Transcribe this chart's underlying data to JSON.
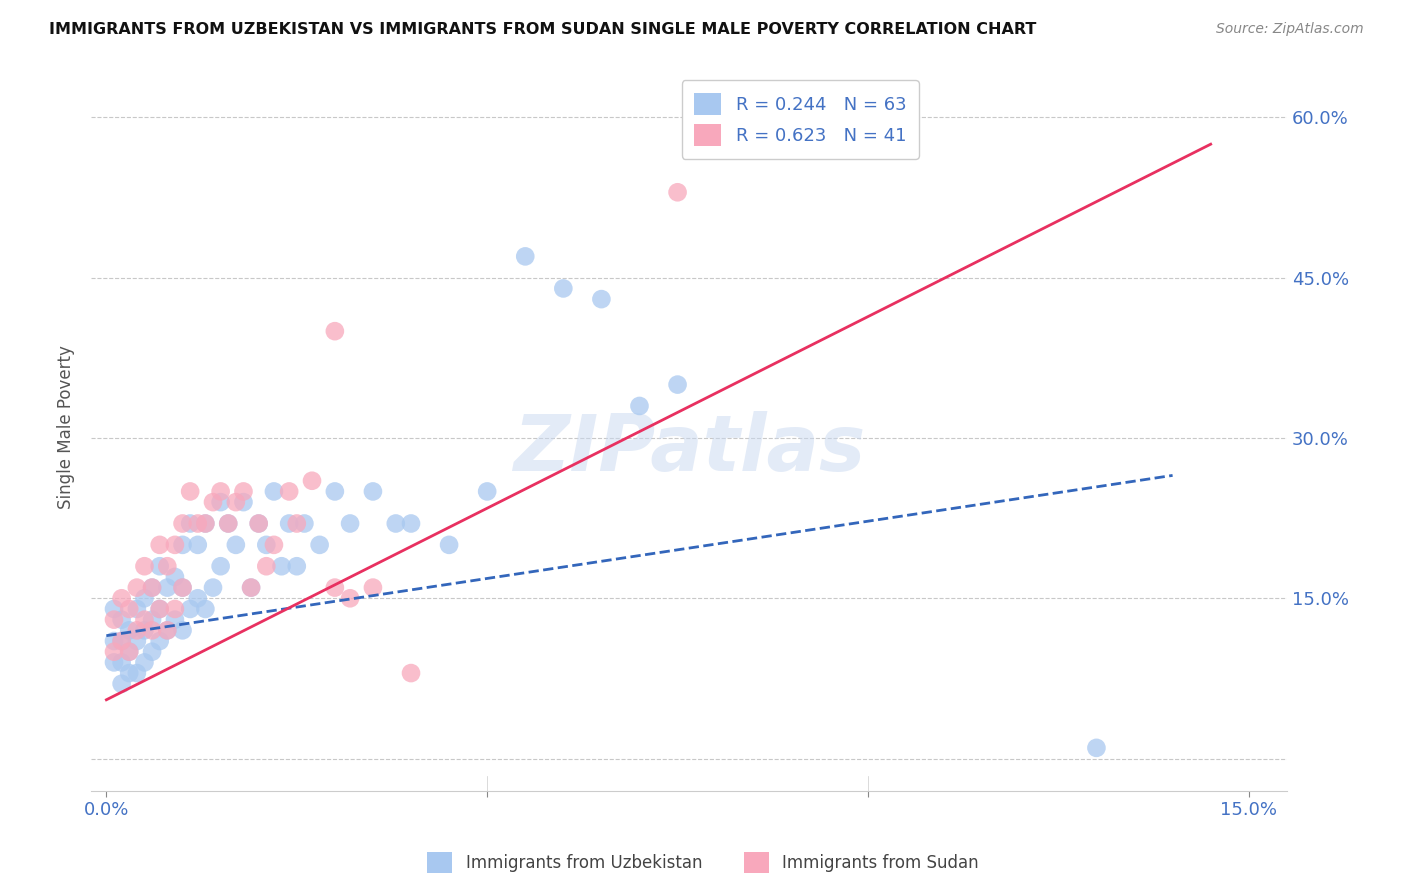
{
  "title": "IMMIGRANTS FROM UZBEKISTAN VS IMMIGRANTS FROM SUDAN SINGLE MALE POVERTY CORRELATION CHART",
  "source": "Source: ZipAtlas.com",
  "ylabel": "Single Male Poverty",
  "background_color": "#ffffff",
  "grid_color": "#c8c8c8",
  "xlim": [
    -0.002,
    0.155
  ],
  "ylim": [
    -0.03,
    0.65
  ],
  "uzbekistan": {
    "label": "Immigrants from Uzbekistan",
    "R": 0.244,
    "N": 63,
    "color_scatter": "#a8c8f0",
    "color_line": "#3366bb",
    "line_style": "--",
    "x": [
      0.001,
      0.001,
      0.001,
      0.002,
      0.002,
      0.002,
      0.002,
      0.003,
      0.003,
      0.003,
      0.004,
      0.004,
      0.004,
      0.005,
      0.005,
      0.005,
      0.006,
      0.006,
      0.006,
      0.007,
      0.007,
      0.007,
      0.008,
      0.008,
      0.009,
      0.009,
      0.01,
      0.01,
      0.01,
      0.011,
      0.011,
      0.012,
      0.012,
      0.013,
      0.013,
      0.014,
      0.015,
      0.015,
      0.016,
      0.017,
      0.018,
      0.019,
      0.02,
      0.021,
      0.022,
      0.023,
      0.024,
      0.025,
      0.026,
      0.028,
      0.03,
      0.032,
      0.035,
      0.038,
      0.04,
      0.045,
      0.05,
      0.055,
      0.06,
      0.065,
      0.07,
      0.075,
      0.13
    ],
    "y": [
      0.14,
      0.11,
      0.09,
      0.13,
      0.11,
      0.09,
      0.07,
      0.12,
      0.1,
      0.08,
      0.14,
      0.11,
      0.08,
      0.15,
      0.12,
      0.09,
      0.16,
      0.13,
      0.1,
      0.18,
      0.14,
      0.11,
      0.16,
      0.12,
      0.17,
      0.13,
      0.2,
      0.16,
      0.12,
      0.22,
      0.14,
      0.2,
      0.15,
      0.22,
      0.14,
      0.16,
      0.24,
      0.18,
      0.22,
      0.2,
      0.24,
      0.16,
      0.22,
      0.2,
      0.25,
      0.18,
      0.22,
      0.18,
      0.22,
      0.2,
      0.25,
      0.22,
      0.25,
      0.22,
      0.22,
      0.2,
      0.25,
      0.47,
      0.44,
      0.43,
      0.33,
      0.35,
      0.01
    ]
  },
  "sudan": {
    "label": "Immigrants from Sudan",
    "R": 0.623,
    "N": 41,
    "color_scatter": "#f8a8bc",
    "color_line": "#e83060",
    "line_style": "-",
    "x": [
      0.001,
      0.001,
      0.002,
      0.002,
      0.003,
      0.003,
      0.004,
      0.004,
      0.005,
      0.005,
      0.006,
      0.006,
      0.007,
      0.007,
      0.008,
      0.008,
      0.009,
      0.009,
      0.01,
      0.01,
      0.011,
      0.012,
      0.013,
      0.014,
      0.015,
      0.016,
      0.017,
      0.018,
      0.019,
      0.02,
      0.021,
      0.022,
      0.024,
      0.025,
      0.027,
      0.03,
      0.032,
      0.035,
      0.04,
      0.075,
      0.03
    ],
    "y": [
      0.13,
      0.1,
      0.15,
      0.11,
      0.14,
      0.1,
      0.16,
      0.12,
      0.18,
      0.13,
      0.16,
      0.12,
      0.2,
      0.14,
      0.18,
      0.12,
      0.2,
      0.14,
      0.22,
      0.16,
      0.25,
      0.22,
      0.22,
      0.24,
      0.25,
      0.22,
      0.24,
      0.25,
      0.16,
      0.22,
      0.18,
      0.2,
      0.25,
      0.22,
      0.26,
      0.16,
      0.15,
      0.16,
      0.08,
      0.53,
      0.4
    ]
  },
  "line_uzbekistan": {
    "x0": 0.0,
    "y0": 0.115,
    "x1": 0.14,
    "y1": 0.265
  },
  "line_sudan": {
    "x0": 0.0,
    "y0": 0.055,
    "x1": 0.145,
    "y1": 0.575
  }
}
